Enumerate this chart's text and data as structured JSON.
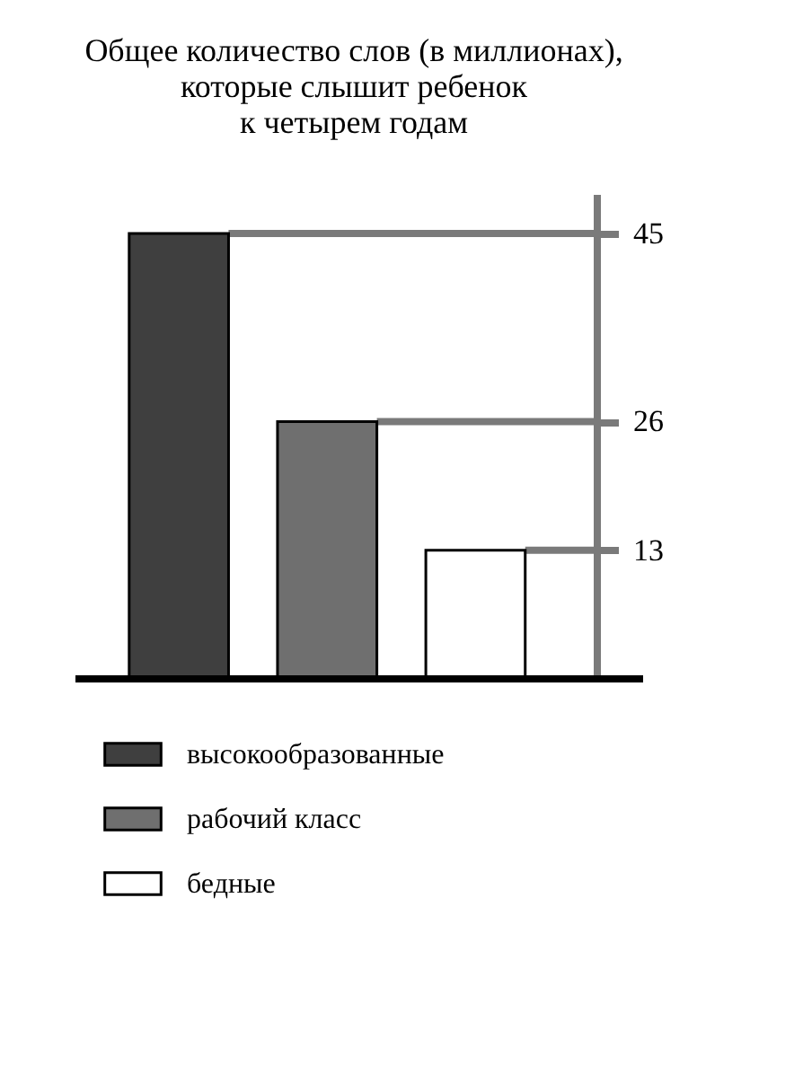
{
  "chart_data": {
    "type": "bar",
    "title": "Общее количество слов (в миллионах),\nкоторые слышит ребенок\nк четырем годам",
    "categories": [
      null,
      null,
      null
    ],
    "series": [
      {
        "name": "высокообразованные",
        "color": "#3f3f3f",
        "values": [
          45,
          null,
          null
        ]
      },
      {
        "name": "рабочий класс",
        "color": "#6f6f6f",
        "values": [
          null,
          26,
          null
        ]
      },
      {
        "name": "бедные",
        "color": "#ffffff",
        "values": [
          null,
          null,
          13
        ]
      }
    ],
    "stacked": true,
    "ylim": [
      0,
      49
    ],
    "yticks": [
      13,
      26,
      45
    ],
    "legend": "bottom",
    "ref_lines": [
      {
        "axis": "y",
        "value": 45,
        "color": "#7a7a7a"
      },
      {
        "axis": "y",
        "value": 26,
        "color": "#7a7a7a"
      },
      {
        "axis": "y",
        "value": 13,
        "color": "#7a7a7a"
      }
    ]
  }
}
